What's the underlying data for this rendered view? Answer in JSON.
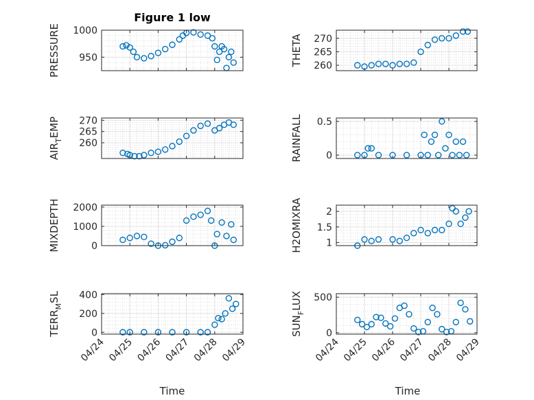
{
  "figure": {
    "title": "Figure 1 low",
    "xlabel": "Time"
  },
  "colors": {
    "marker": "#0072BD",
    "grid": "#dcdcdc",
    "axes": "#262626"
  },
  "xaxis": {
    "type": "date",
    "range": [
      "2008-04-24",
      "2008-04-29"
    ],
    "ticks": [
      "2008-04-24",
      "2008-04-25",
      "2008-04-26",
      "2008-04-27",
      "2008-04-28",
      "2008-04-29"
    ],
    "tick_labels": [
      "04/24",
      "04/25",
      "04/26",
      "04/27",
      "04/28",
      "04/29"
    ]
  },
  "chart_data": [
    {
      "type": "scatter",
      "marker": "circle",
      "title": "Figure 1 low",
      "ylabel": "PRESSURE",
      "xlabel": "",
      "ylim": [
        925,
        1000
      ],
      "yticks": [
        950,
        1000
      ],
      "grid": true,
      "x": [
        "2008-04-24 18:00",
        "2008-04-24 21:00",
        "2008-04-25 00:00",
        "2008-04-25 03:00",
        "2008-04-25 06:00",
        "2008-04-25 12:00",
        "2008-04-25 18:00",
        "2008-04-26 00:00",
        "2008-04-26 06:00",
        "2008-04-26 12:00",
        "2008-04-26 18:00",
        "2008-04-26 21:00",
        "2008-04-27 00:00",
        "2008-04-27 06:00",
        "2008-04-27 12:00",
        "2008-04-27 18:00",
        "2008-04-27 22:00",
        "2008-04-28 00:00",
        "2008-04-28 02:00",
        "2008-04-28 04:00",
        "2008-04-28 06:00",
        "2008-04-28 08:00",
        "2008-04-28 10:00",
        "2008-04-28 12:00",
        "2008-04-28 14:00",
        "2008-04-28 16:00"
      ],
      "y": [
        970,
        972,
        968,
        960,
        950,
        948,
        952,
        958,
        965,
        973,
        983,
        990,
        995,
        996,
        992,
        990,
        985,
        970,
        945,
        960,
        970,
        965,
        930,
        950,
        960,
        940
      ]
    },
    {
      "type": "scatter",
      "marker": "circle",
      "title": "",
      "ylabel": "THETA",
      "xlabel": "",
      "ylim": [
        258,
        273
      ],
      "yticks": [
        260,
        265,
        270
      ],
      "grid": true,
      "x": [
        "2008-04-24 18:00",
        "2008-04-25 00:00",
        "2008-04-25 06:00",
        "2008-04-25 12:00",
        "2008-04-25 18:00",
        "2008-04-26 00:00",
        "2008-04-26 06:00",
        "2008-04-26 12:00",
        "2008-04-26 18:00",
        "2008-04-27 00:00",
        "2008-04-27 06:00",
        "2008-04-27 12:00",
        "2008-04-27 18:00",
        "2008-04-28 00:00",
        "2008-04-28 06:00",
        "2008-04-28 12:00",
        "2008-04-28 16:00"
      ],
      "y": [
        260,
        259.5,
        260,
        260.5,
        260.5,
        260,
        260.5,
        260.5,
        261,
        265,
        267.5,
        269.5,
        270,
        270,
        271,
        272.5,
        272.5
      ]
    },
    {
      "type": "scatter",
      "marker": "circle",
      "title": "",
      "ylabel": "AIR_TEMP",
      "xlabel": "",
      "ylim": [
        253,
        271
      ],
      "yticks": [
        260,
        265,
        270
      ],
      "grid": true,
      "x": [
        "2008-04-24 18:00",
        "2008-04-24 22:00",
        "2008-04-25 00:00",
        "2008-04-25 04:00",
        "2008-04-25 08:00",
        "2008-04-25 12:00",
        "2008-04-25 18:00",
        "2008-04-26 00:00",
        "2008-04-26 06:00",
        "2008-04-26 12:00",
        "2008-04-26 18:00",
        "2008-04-27 00:00",
        "2008-04-27 06:00",
        "2008-04-27 12:00",
        "2008-04-27 18:00",
        "2008-04-28 00:00",
        "2008-04-28 04:00",
        "2008-04-28 08:00",
        "2008-04-28 12:00",
        "2008-04-28 16:00"
      ],
      "y": [
        255.5,
        255,
        254.5,
        254,
        254,
        254.5,
        255.5,
        256,
        257,
        258.5,
        260.5,
        263,
        265.5,
        267.5,
        268.5,
        265.5,
        266.5,
        268,
        269,
        268
      ]
    },
    {
      "type": "scatter",
      "marker": "circle",
      "title": "",
      "ylabel": "RAINFALL",
      "xlabel": "",
      "ylim": [
        -0.05,
        0.55
      ],
      "yticks": [
        0,
        0.5
      ],
      "grid": true,
      "x": [
        "2008-04-24 18:00",
        "2008-04-25 00:00",
        "2008-04-25 03:00",
        "2008-04-25 06:00",
        "2008-04-25 12:00",
        "2008-04-26 00:00",
        "2008-04-26 12:00",
        "2008-04-27 00:00",
        "2008-04-27 03:00",
        "2008-04-27 06:00",
        "2008-04-27 09:00",
        "2008-04-27 12:00",
        "2008-04-27 15:00",
        "2008-04-27 18:00",
        "2008-04-27 21:00",
        "2008-04-28 00:00",
        "2008-04-28 03:00",
        "2008-04-28 06:00",
        "2008-04-28 09:00",
        "2008-04-28 12:00",
        "2008-04-28 15:00"
      ],
      "y": [
        0,
        0,
        0.1,
        0.1,
        0,
        0,
        0,
        0,
        0.3,
        0,
        0.2,
        0.3,
        0,
        0.5,
        0.1,
        0.3,
        0,
        0.2,
        0,
        0.2,
        0
      ]
    },
    {
      "type": "scatter",
      "marker": "circle",
      "title": "",
      "ylabel": "MIXDEPTH",
      "xlabel": "",
      "ylim": [
        0,
        2100
      ],
      "yticks": [
        0,
        1000,
        2000
      ],
      "grid": true,
      "x": [
        "2008-04-24 18:00",
        "2008-04-25 00:00",
        "2008-04-25 06:00",
        "2008-04-25 12:00",
        "2008-04-25 18:00",
        "2008-04-26 00:00",
        "2008-04-26 06:00",
        "2008-04-26 12:00",
        "2008-04-26 18:00",
        "2008-04-27 00:00",
        "2008-04-27 06:00",
        "2008-04-27 12:00",
        "2008-04-27 18:00",
        "2008-04-27 21:00",
        "2008-04-28 00:00",
        "2008-04-28 02:00",
        "2008-04-28 06:00",
        "2008-04-28 10:00",
        "2008-04-28 14:00",
        "2008-04-28 16:00"
      ],
      "y": [
        300,
        400,
        500,
        450,
        100,
        0,
        20,
        200,
        400,
        1300,
        1500,
        1600,
        1800,
        1300,
        0,
        600,
        1200,
        500,
        1100,
        300
      ]
    },
    {
      "type": "scatter",
      "marker": "circle",
      "title": "",
      "ylabel": "H2OMIXRA",
      "xlabel": "",
      "ylim": [
        0.9,
        2.2
      ],
      "yticks": [
        1,
        1.5,
        2
      ],
      "grid": true,
      "x": [
        "2008-04-24 18:00",
        "2008-04-25 00:00",
        "2008-04-25 06:00",
        "2008-04-25 12:00",
        "2008-04-26 00:00",
        "2008-04-26 06:00",
        "2008-04-26 12:00",
        "2008-04-26 18:00",
        "2008-04-27 00:00",
        "2008-04-27 06:00",
        "2008-04-27 12:00",
        "2008-04-27 18:00",
        "2008-04-28 00:00",
        "2008-04-28 03:00",
        "2008-04-28 06:00",
        "2008-04-28 10:00",
        "2008-04-28 14:00",
        "2008-04-28 17:00"
      ],
      "y": [
        0.9,
        1.1,
        1.05,
        1.1,
        1.1,
        1.05,
        1.15,
        1.3,
        1.4,
        1.3,
        1.4,
        1.4,
        1.6,
        2.1,
        2.0,
        1.6,
        1.8,
        2.0
      ]
    },
    {
      "type": "scatter",
      "marker": "circle",
      "title": "",
      "ylabel": "TERR_MSL",
      "xlabel": "Time",
      "ylim": [
        -20,
        410
      ],
      "yticks": [
        0,
        200,
        400
      ],
      "grid": true,
      "x": [
        "2008-04-24 18:00",
        "2008-04-25 00:00",
        "2008-04-25 12:00",
        "2008-04-26 00:00",
        "2008-04-26 12:00",
        "2008-04-27 00:00",
        "2008-04-27 12:00",
        "2008-04-27 18:00",
        "2008-04-28 00:00",
        "2008-04-28 03:00",
        "2008-04-28 06:00",
        "2008-04-28 09:00",
        "2008-04-28 12:00",
        "2008-04-28 15:00",
        "2008-04-28 18:00"
      ],
      "y": [
        0,
        0,
        0,
        0,
        0,
        0,
        0,
        0,
        80,
        150,
        140,
        200,
        360,
        250,
        300
      ]
    },
    {
      "type": "scatter",
      "marker": "circle",
      "title": "",
      "ylabel": "SUN_FLUX",
      "xlabel": "Time",
      "ylim": [
        -20,
        550
      ],
      "yticks": [
        0,
        500
      ],
      "grid": true,
      "x": [
        "2008-04-24 18:00",
        "2008-04-24 22:00",
        "2008-04-25 02:00",
        "2008-04-25 06:00",
        "2008-04-25 10:00",
        "2008-04-25 14:00",
        "2008-04-25 18:00",
        "2008-04-25 22:00",
        "2008-04-26 02:00",
        "2008-04-26 06:00",
        "2008-04-26 10:00",
        "2008-04-26 14:00",
        "2008-04-26 18:00",
        "2008-04-26 22:00",
        "2008-04-27 02:00",
        "2008-04-27 06:00",
        "2008-04-27 10:00",
        "2008-04-27 14:00",
        "2008-04-27 18:00",
        "2008-04-27 22:00",
        "2008-04-28 02:00",
        "2008-04-28 06:00",
        "2008-04-28 10:00",
        "2008-04-28 14:00",
        "2008-04-28 18:00"
      ],
      "y": [
        180,
        120,
        80,
        120,
        220,
        210,
        130,
        90,
        200,
        350,
        380,
        260,
        60,
        10,
        20,
        150,
        350,
        260,
        50,
        10,
        20,
        150,
        420,
        330,
        160
      ]
    }
  ]
}
